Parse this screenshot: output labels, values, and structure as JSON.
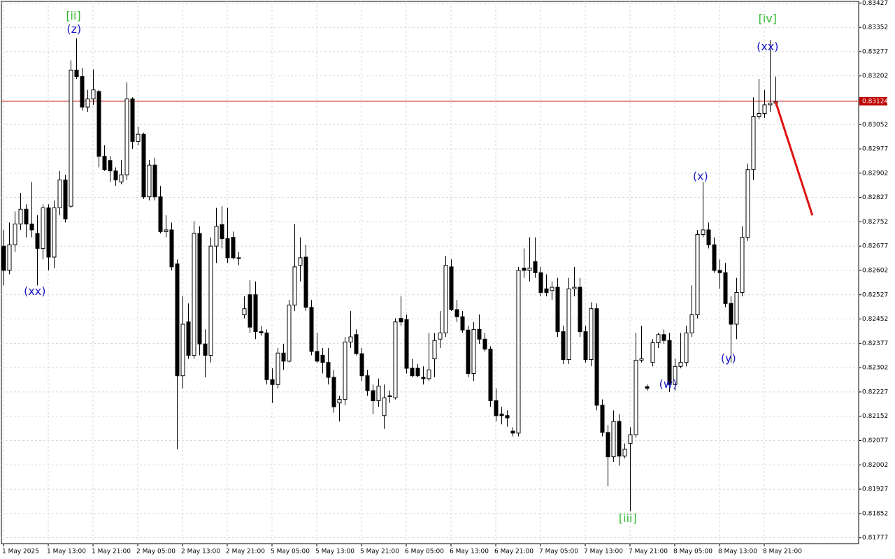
{
  "chart_data": {
    "type": "candlestick",
    "ohlc": [
      [
        0.82677,
        0.82727,
        0.82556,
        0.82602
      ],
      [
        0.82602,
        0.8275,
        0.8259,
        0.82681
      ],
      [
        0.82681,
        0.82784,
        0.82659,
        0.82745
      ],
      [
        0.82745,
        0.82841,
        0.82727,
        0.82791
      ],
      [
        0.82791,
        0.82806,
        0.82704,
        0.82745
      ],
      [
        0.82745,
        0.82875,
        0.82704,
        0.82727
      ],
      [
        0.82716,
        0.82772,
        0.82556,
        0.8267
      ],
      [
        0.8267,
        0.82806,
        0.82636,
        0.82795
      ],
      [
        0.82795,
        0.82806,
        0.82602,
        0.82643
      ],
      [
        0.82643,
        0.82818,
        0.82609,
        0.82795
      ],
      [
        0.82795,
        0.82909,
        0.82772,
        0.82881
      ],
      [
        0.82881,
        0.82897,
        0.8275,
        0.82761
      ],
      [
        0.828,
        0.8325,
        0.82795,
        0.8322
      ],
      [
        0.8322,
        0.83318,
        0.83193,
        0.832
      ],
      [
        0.832,
        0.83227,
        0.83095,
        0.83106
      ],
      [
        0.83106,
        0.83159,
        0.83091,
        0.83131
      ],
      [
        0.83131,
        0.83222,
        0.83113,
        0.83159
      ],
      [
        0.83154,
        0.83159,
        0.8292,
        0.82954
      ],
      [
        0.82954,
        0.82988,
        0.82909,
        0.82913
      ],
      [
        0.82941,
        0.82954,
        0.82875,
        0.82909
      ],
      [
        0.82909,
        0.8292,
        0.82863,
        0.82881
      ],
      [
        0.82875,
        0.82943,
        0.82868,
        0.82897
      ],
      [
        0.82897,
        0.83182,
        0.82881,
        0.83131
      ],
      [
        0.83131,
        0.83136,
        0.82977,
        0.83
      ],
      [
        0.83,
        0.83045,
        0.82988,
        0.83022
      ],
      [
        0.83022,
        0.83027,
        0.82822,
        0.82829
      ],
      [
        0.82829,
        0.82943,
        0.82818,
        0.82927
      ],
      [
        0.82927,
        0.8295,
        0.82818,
        0.82829
      ],
      [
        0.82829,
        0.82863,
        0.82716,
        0.82722
      ],
      [
        0.82722,
        0.82772,
        0.82704,
        0.82727
      ],
      [
        0.82727,
        0.8275,
        0.82602,
        0.82613
      ],
      [
        0.82622,
        0.82636,
        0.8205,
        0.82277
      ],
      [
        0.82277,
        0.82522,
        0.82238,
        0.82436
      ],
      [
        0.82443,
        0.825,
        0.82329,
        0.8234
      ],
      [
        0.8234,
        0.82754,
        0.82329,
        0.82716
      ],
      [
        0.82716,
        0.82738,
        0.8234,
        0.82375
      ],
      [
        0.82375,
        0.8242,
        0.82272,
        0.8234
      ],
      [
        0.8234,
        0.82704,
        0.82318,
        0.82677
      ],
      [
        0.82677,
        0.82795,
        0.82625,
        0.82738
      ],
      [
        0.82743,
        0.828,
        0.8267,
        0.827
      ],
      [
        0.827,
        0.82795,
        0.82625,
        0.82641
      ],
      [
        0.82704,
        0.82722,
        0.82636,
        0.82641
      ],
      [
        0.82641,
        0.82659,
        0.82618,
        0.82641
      ],
      [
        0.82465,
        0.82522,
        0.82454,
        0.82484
      ],
      [
        0.82527,
        0.82572,
        0.82409,
        0.82427
      ],
      [
        0.82527,
        0.82568,
        0.8239,
        0.82413
      ],
      [
        0.82413,
        0.82431,
        0.824,
        0.82409
      ],
      [
        0.82409,
        0.8242,
        0.8225,
        0.82265
      ],
      [
        0.82265,
        0.823,
        0.82193,
        0.8225
      ],
      [
        0.8225,
        0.82363,
        0.82238,
        0.82347
      ],
      [
        0.82347,
        0.82375,
        0.82295,
        0.82322
      ],
      [
        0.82322,
        0.82511,
        0.82318,
        0.82495
      ],
      [
        0.82495,
        0.82745,
        0.82477,
        0.82613
      ],
      [
        0.82618,
        0.82704,
        0.82568,
        0.82641
      ],
      [
        0.82643,
        0.82681,
        0.82477,
        0.82488
      ],
      [
        0.82488,
        0.82511,
        0.8234,
        0.82352
      ],
      [
        0.82352,
        0.82409,
        0.82318,
        0.82322
      ],
      [
        0.8234,
        0.82363,
        0.82284,
        0.82318
      ],
      [
        0.82318,
        0.82363,
        0.8225,
        0.82272
      ],
      [
        0.82272,
        0.82295,
        0.82163,
        0.82181
      ],
      [
        0.82193,
        0.82215,
        0.82136,
        0.82204
      ],
      [
        0.82204,
        0.82397,
        0.82186,
        0.82381
      ],
      [
        0.82381,
        0.82477,
        0.82363,
        0.82397
      ],
      [
        0.82404,
        0.8242,
        0.8234,
        0.82345
      ],
      [
        0.82345,
        0.82363,
        0.82261,
        0.82277
      ],
      [
        0.82277,
        0.82295,
        0.82215,
        0.82231
      ],
      [
        0.82231,
        0.8225,
        0.82159,
        0.822
      ],
      [
        0.822,
        0.82268,
        0.82181,
        0.82245
      ],
      [
        0.82154,
        0.8225,
        0.82113,
        0.82209
      ],
      [
        0.82215,
        0.82231,
        0.82193,
        0.82213
      ],
      [
        0.82209,
        0.82454,
        0.82204,
        0.82443
      ],
      [
        0.82454,
        0.82522,
        0.82431,
        0.82443
      ],
      [
        0.8245,
        0.82466,
        0.82284,
        0.823
      ],
      [
        0.823,
        0.82329,
        0.82272,
        0.82277
      ],
      [
        0.823,
        0.82313,
        0.82272,
        0.82277
      ],
      [
        0.82272,
        0.82306,
        0.8225,
        0.82268
      ],
      [
        0.82268,
        0.82409,
        0.82261,
        0.82295
      ],
      [
        0.82329,
        0.82409,
        0.82272,
        0.82386
      ],
      [
        0.8239,
        0.82477,
        0.82363,
        0.82409
      ],
      [
        0.82409,
        0.82647,
        0.82397,
        0.82618
      ],
      [
        0.82613,
        0.82636,
        0.82477,
        0.82481
      ],
      [
        0.82481,
        0.82511,
        0.82443,
        0.82459
      ],
      [
        0.82459,
        0.82477,
        0.82409,
        0.82418
      ],
      [
        0.82418,
        0.82431,
        0.82272,
        0.82284
      ],
      [
        0.82284,
        0.82443,
        0.82261,
        0.8242
      ],
      [
        0.8242,
        0.82466,
        0.82375,
        0.8239
      ],
      [
        0.8239,
        0.82409,
        0.82352,
        0.82359
      ],
      [
        0.82359,
        0.82368,
        0.82181,
        0.822
      ],
      [
        0.822,
        0.82238,
        0.82136,
        0.82154
      ],
      [
        0.82159,
        0.82181,
        0.82127,
        0.82154
      ],
      [
        0.82154,
        0.8217,
        0.8212,
        0.82147
      ],
      [
        0.82106,
        0.82118,
        0.8209,
        0.821
      ],
      [
        0.821,
        0.82613,
        0.8209,
        0.82602
      ],
      [
        0.82609,
        0.8267,
        0.82579,
        0.82602
      ],
      [
        0.82602,
        0.82704,
        0.82568,
        0.82609
      ],
      [
        0.82629,
        0.82704,
        0.82579,
        0.82595
      ],
      [
        0.82595,
        0.82613,
        0.82522,
        0.82534
      ],
      [
        0.82545,
        0.8259,
        0.82522,
        0.82534
      ],
      [
        0.8254,
        0.82568,
        0.82511,
        0.8255
      ],
      [
        0.8255,
        0.82579,
        0.82397,
        0.82413
      ],
      [
        0.82413,
        0.82431,
        0.82313,
        0.82327
      ],
      [
        0.82327,
        0.82579,
        0.82313,
        0.82545
      ],
      [
        0.82545,
        0.82613,
        0.82522,
        0.8255
      ],
      [
        0.8255,
        0.82579,
        0.82397,
        0.82413
      ],
      [
        0.82413,
        0.82431,
        0.82318,
        0.82327
      ],
      [
        0.82327,
        0.82504,
        0.82306,
        0.82484
      ],
      [
        0.82484,
        0.825,
        0.8217,
        0.82186
      ],
      [
        0.82186,
        0.82204,
        0.8209,
        0.82102
      ],
      [
        0.82102,
        0.82125,
        0.81936,
        0.82027
      ],
      [
        0.82027,
        0.8217,
        0.82011,
        0.82136
      ],
      [
        0.82136,
        0.82159,
        0.82,
        0.82029
      ],
      [
        0.82029,
        0.82068,
        0.82022,
        0.8205
      ],
      [
        0.82068,
        0.82118,
        0.81859,
        0.82095
      ],
      [
        0.82095,
        0.82409,
        0.82086,
        0.82325
      ],
      [
        0.82325,
        0.82431,
        0.82318,
        0.82329
      ],
      [
        0.82243,
        0.8225,
        0.82231,
        0.82238
      ],
      [
        0.82318,
        0.8239,
        0.82306,
        0.82379
      ],
      [
        0.82379,
        0.82409,
        0.82363,
        0.82404
      ],
      [
        0.82404,
        0.8242,
        0.82375,
        0.82386
      ],
      [
        0.82386,
        0.82409,
        0.82227,
        0.8225
      ],
      [
        0.8225,
        0.82329,
        0.82231,
        0.82306
      ],
      [
        0.82306,
        0.82409,
        0.823,
        0.82318
      ],
      [
        0.82318,
        0.82431,
        0.82306,
        0.82409
      ],
      [
        0.82409,
        0.82556,
        0.82397,
        0.82465
      ],
      [
        0.82465,
        0.82727,
        0.82454,
        0.82713
      ],
      [
        0.82713,
        0.82875,
        0.82704,
        0.82727
      ],
      [
        0.82727,
        0.8275,
        0.8267,
        0.82681
      ],
      [
        0.82681,
        0.82704,
        0.82595,
        0.82602
      ],
      [
        0.82602,
        0.82636,
        0.82545,
        0.82595
      ],
      [
        0.82595,
        0.82625,
        0.82488,
        0.825
      ],
      [
        0.825,
        0.82522,
        0.82318,
        0.82436
      ],
      [
        0.82436,
        0.82579,
        0.8239,
        0.82534
      ],
      [
        0.82534,
        0.82738,
        0.82522,
        0.82704
      ],
      [
        0.82704,
        0.82931,
        0.82693,
        0.82913
      ],
      [
        0.82913,
        0.83136,
        0.82881,
        0.83077
      ],
      [
        0.83077,
        0.83193,
        0.83068,
        0.83086
      ],
      [
        0.83086,
        0.83159,
        0.83072,
        0.83113
      ],
      [
        0.83113,
        0.83313,
        0.83091,
        0.83118
      ],
      [
        0.83118,
        0.832,
        0.83109,
        0.83124
      ]
    ],
    "up_color": "#ffffff",
    "down_color": "#000000",
    "wick_color": "#000000",
    "xlim": [
      -0.375,
      152.875
    ],
    "xticks": [
      {
        "value": 0,
        "label": "1 May 2025"
      },
      {
        "value": 8,
        "label": "1 May 13:00"
      },
      {
        "value": 16,
        "label": "1 May 21:00"
      },
      {
        "value": 24,
        "label": "2 May 05:00"
      },
      {
        "value": 32,
        "label": "2 May 13:00"
      },
      {
        "value": 40,
        "label": "2 May 21:00"
      },
      {
        "value": 48,
        "label": "5 May 05:00"
      },
      {
        "value": 56,
        "label": "5 May 13:00"
      },
      {
        "value": 64,
        "label": "5 May 21:00"
      },
      {
        "value": 72,
        "label": "6 May 05:00"
      },
      {
        "value": 80,
        "label": "6 May 13:00"
      },
      {
        "value": 88,
        "label": "6 May 21:00"
      },
      {
        "value": 96,
        "label": "7 May 05:00"
      },
      {
        "value": 104,
        "label": "7 May 13:00"
      },
      {
        "value": 112,
        "label": "7 May 21:00"
      },
      {
        "value": 120,
        "label": "8 May 05:00"
      },
      {
        "value": 128,
        "label": "8 May 13:00"
      },
      {
        "value": 136,
        "label": "8 May 21:00"
      }
    ],
    "ylim": [
      0.81759,
      0.83432
    ],
    "yticks": [
      0.81777,
      0.81852,
      0.81927,
      0.82002,
      0.82077,
      0.82152,
      0.82227,
      0.82302,
      0.82377,
      0.82452,
      0.82527,
      0.82602,
      0.82677,
      0.82752,
      0.82827,
      0.82902,
      0.82977,
      0.83052,
      0.83202,
      0.83277,
      0.83352,
      0.83427
    ],
    "grid": true,
    "price_line": {
      "value": 0.83124,
      "color": "#c00000"
    },
    "forecast": {
      "x": [
        138,
        144.6
      ],
      "values": [
        0.83124,
        0.82772
      ],
      "color": "#e01010"
    },
    "annotations": [
      {
        "text": "[ii]",
        "x": 12.5,
        "y": 0.83386,
        "color": "#33bb33"
      },
      {
        "text": "(z)",
        "x": 12.6,
        "y": 0.83345,
        "color": "#1a1acc"
      },
      {
        "text": "(xx)",
        "x": 5.6,
        "y": 0.82536,
        "color": "#1a1acc"
      },
      {
        "text": "[iii]",
        "x": 111.6,
        "y": 0.81836,
        "color": "#33bb33"
      },
      {
        "text": "(w)",
        "x": 118.8,
        "y": 0.8225,
        "color": "#1a1acc"
      },
      {
        "text": "(x)",
        "x": 124.6,
        "y": 0.82891,
        "color": "#1a1acc"
      },
      {
        "text": "(y)",
        "x": 129.6,
        "y": 0.82329,
        "color": "#1a1acc"
      },
      {
        "text": "(xx)",
        "x": 136.6,
        "y": 0.83291,
        "color": "#1a1acc"
      },
      {
        "text": "[iv]",
        "x": 136.6,
        "y": 0.83377,
        "color": "#33bb33"
      }
    ]
  }
}
